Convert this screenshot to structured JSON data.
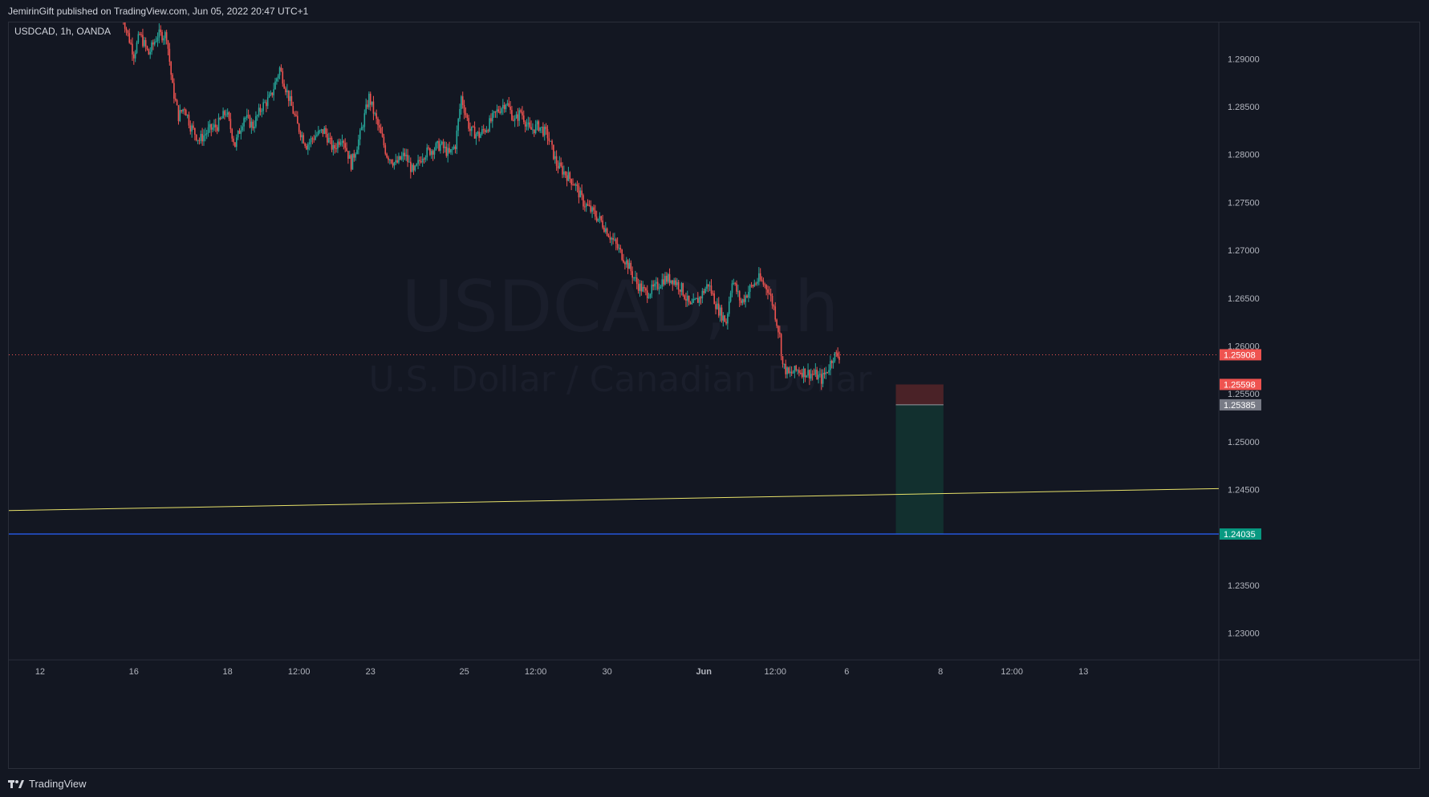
{
  "publisher_line": "JemirinGift published on TradingView.com, Jun 05, 2022 20:47 UTC+1",
  "brand": {
    "name": "TradingView",
    "icon": "tradingview-logo-icon"
  },
  "colors": {
    "background": "#131722",
    "up": "#26a69a",
    "down": "#ef5350",
    "grid_border": "#2a2e39",
    "trendline": "#e8e26a",
    "target_line": "#2962ff",
    "price_line": "#ef5350",
    "stop_zone": "#4a2227",
    "target_zone": "#12302f",
    "watermark": "#1a1e2b"
  },
  "chart_data": {
    "type": "candlestick",
    "symbol_label": "USDCAD, 1h, OANDA",
    "watermark_title": "USDCAD, 1h",
    "watermark_subtitle": "U.S. Dollar / Canadian Dollar",
    "y_axis": {
      "range": [
        1.2272,
        1.2938
      ],
      "ticks": [
        "1.29000",
        "1.28500",
        "1.28000",
        "1.27500",
        "1.27000",
        "1.26500",
        "1.26000",
        "1.25500",
        "1.25000",
        "1.24500",
        "1.23500",
        "1.23000"
      ]
    },
    "x_axis": {
      "range_hours": [
        0,
        813
      ],
      "ticks": [
        {
          "label": "12",
          "h": 21
        },
        {
          "label": "16",
          "h": 84
        },
        {
          "label": "18",
          "h": 147
        },
        {
          "label": "12:00",
          "h": 195
        },
        {
          "label": "23",
          "h": 243
        },
        {
          "label": "25",
          "h": 306
        },
        {
          "label": "12:00",
          "h": 354
        },
        {
          "label": "30",
          "h": 402
        },
        {
          "label": "Jun",
          "h": 467,
          "bold": true
        },
        {
          "label": "12:00",
          "h": 515
        },
        {
          "label": "6",
          "h": 563
        },
        {
          "label": "8",
          "h": 626
        },
        {
          "label": "12:00",
          "h": 674
        },
        {
          "label": "13",
          "h": 722
        }
      ]
    },
    "price_path": [
      [
        76,
        1.2948
      ],
      [
        80,
        1.2925
      ],
      [
        84,
        1.2905
      ],
      [
        88,
        1.2925
      ],
      [
        94,
        1.2905
      ],
      [
        100,
        1.2925
      ],
      [
        106,
        1.2925
      ],
      [
        110,
        1.287
      ],
      [
        114,
        1.284
      ],
      [
        118,
        1.285
      ],
      [
        122,
        1.283
      ],
      [
        128,
        1.2815
      ],
      [
        134,
        1.2825
      ],
      [
        140,
        1.283
      ],
      [
        146,
        1.2845
      ],
      [
        152,
        1.281
      ],
      [
        158,
        1.284
      ],
      [
        164,
        1.283
      ],
      [
        170,
        1.285
      ],
      [
        176,
        1.286
      ],
      [
        182,
        1.289
      ],
      [
        188,
        1.286
      ],
      [
        194,
        1.283
      ],
      [
        200,
        1.281
      ],
      [
        206,
        1.282
      ],
      [
        212,
        1.2825
      ],
      [
        218,
        1.2805
      ],
      [
        224,
        1.282
      ],
      [
        230,
        1.279
      ],
      [
        236,
        1.282
      ],
      [
        242,
        1.286
      ],
      [
        248,
        1.283
      ],
      [
        254,
        1.28
      ],
      [
        260,
        1.279
      ],
      [
        266,
        1.28
      ],
      [
        272,
        1.278
      ],
      [
        278,
        1.28
      ],
      [
        284,
        1.2805
      ],
      [
        290,
        1.281
      ],
      [
        296,
        1.28
      ],
      [
        300,
        1.281
      ],
      [
        304,
        1.286
      ],
      [
        310,
        1.2825
      ],
      [
        316,
        1.282
      ],
      [
        322,
        1.283
      ],
      [
        328,
        1.2845
      ],
      [
        334,
        1.2855
      ],
      [
        340,
        1.2835
      ],
      [
        344,
        1.2845
      ],
      [
        350,
        1.2825
      ],
      [
        356,
        1.283
      ],
      [
        362,
        1.282
      ],
      [
        368,
        1.279
      ],
      [
        374,
        1.278
      ],
      [
        380,
        1.277
      ],
      [
        386,
        1.275
      ],
      [
        392,
        1.274
      ],
      [
        398,
        1.273
      ],
      [
        404,
        1.2715
      ],
      [
        410,
        1.27
      ],
      [
        416,
        1.2685
      ],
      [
        422,
        1.2665
      ],
      [
        428,
        1.2655
      ],
      [
        434,
        1.266
      ],
      [
        440,
        1.267
      ],
      [
        446,
        1.267
      ],
      [
        452,
        1.266
      ],
      [
        458,
        1.264
      ],
      [
        464,
        1.265
      ],
      [
        470,
        1.2665
      ],
      [
        476,
        1.264
      ],
      [
        482,
        1.2625
      ],
      [
        486,
        1.267
      ],
      [
        492,
        1.2645
      ],
      [
        498,
        1.266
      ],
      [
        504,
        1.267
      ],
      [
        510,
        1.266
      ],
      [
        514,
        1.264
      ],
      [
        518,
        1.261
      ],
      [
        520,
        1.258
      ],
      [
        524,
        1.257
      ],
      [
        530,
        1.2575
      ],
      [
        536,
        1.2572
      ],
      [
        542,
        1.257
      ],
      [
        546,
        1.2565
      ],
      [
        550,
        1.2575
      ],
      [
        554,
        1.259
      ],
      [
        558,
        1.259
      ]
    ],
    "current_price": {
      "label": "1.25908",
      "value": 1.25908
    },
    "lines": [
      {
        "name": "ascending-trendline",
        "from": [
          0,
          1.2428
        ],
        "to": [
          813,
          1.2451
        ]
      },
      {
        "name": "target-line",
        "value": 1.24035
      }
    ],
    "position": {
      "type": "short",
      "h_start": 596,
      "h_end": 628,
      "stop": 1.25598,
      "entry": 1.25385,
      "target": 1.24035
    },
    "price_labels": [
      {
        "label": "1.25908",
        "value": 1.25908,
        "color": "#ef5350"
      },
      {
        "label": "1.25598",
        "value": 1.25598,
        "color": "#ef5350"
      },
      {
        "label": "1.25385",
        "value": 1.25385,
        "color": "#787b86"
      },
      {
        "label": "1.24035",
        "value": 1.24035,
        "color": "#089981"
      }
    ]
  }
}
